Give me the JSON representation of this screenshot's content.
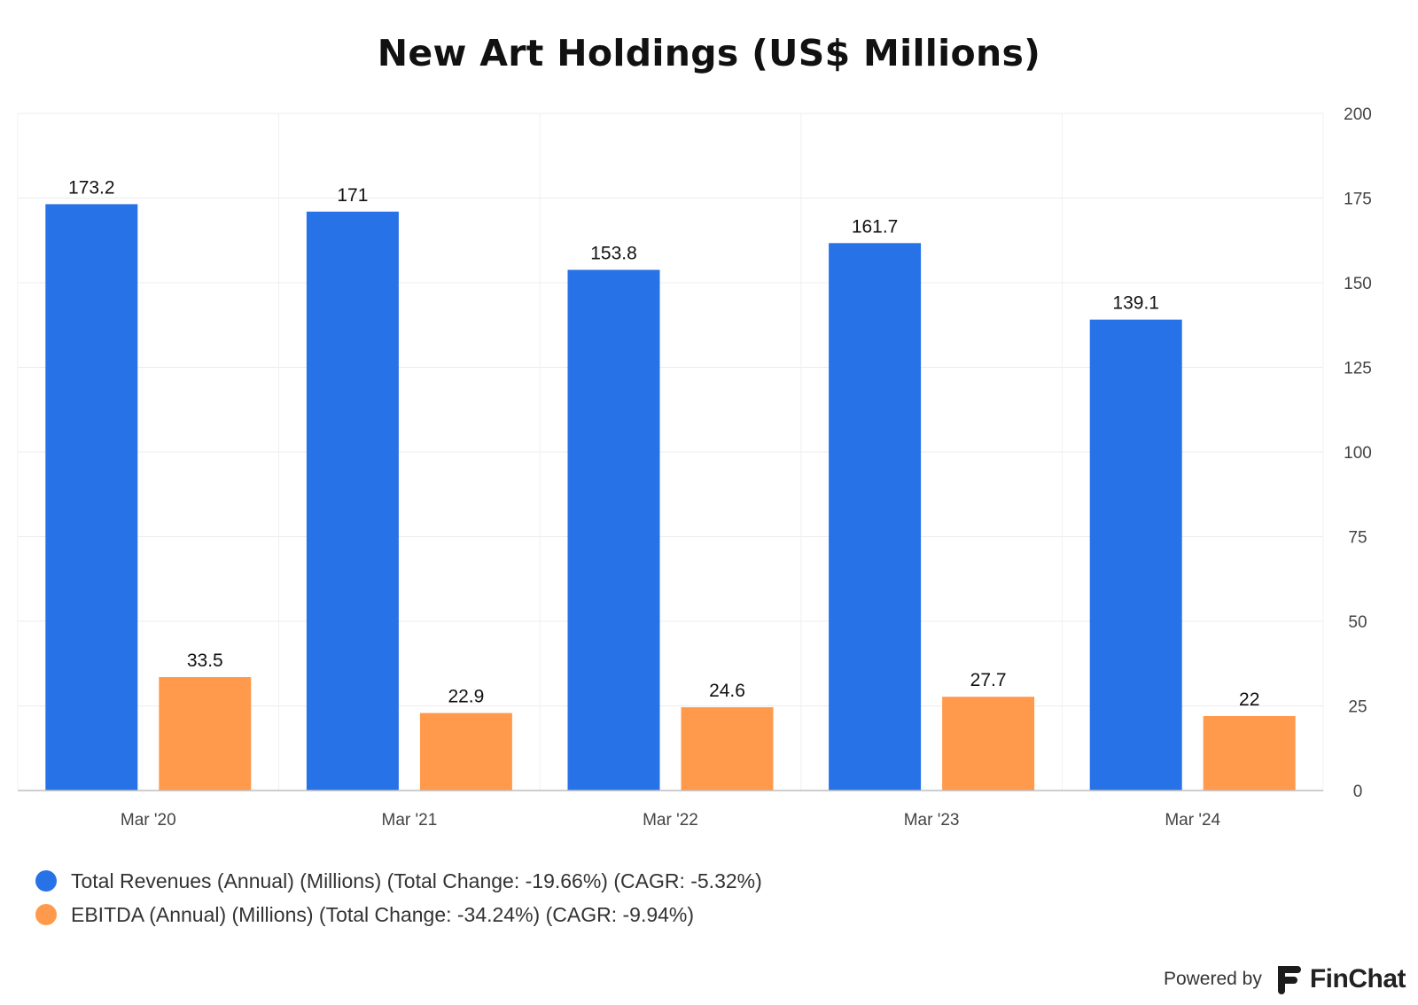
{
  "chart_data": {
    "type": "bar",
    "title": "New Art Holdings (US$ Millions)",
    "categories": [
      "Mar '20",
      "Mar '21",
      "Mar '22",
      "Mar '23",
      "Mar '24"
    ],
    "series": [
      {
        "name": "Total Revenues (Annual) (Millions) (Total Change: -19.66%) (CAGR: -5.32%)",
        "values": [
          173.2,
          171,
          153.8,
          161.7,
          139.1
        ],
        "labels": [
          "173.2",
          "171",
          "153.8",
          "161.7",
          "139.1"
        ],
        "color": "#2872e8"
      },
      {
        "name": "EBITDA (Annual) (Millions) (Total Change: -34.24%) (CAGR: -9.94%)",
        "values": [
          33.5,
          22.9,
          24.6,
          27.7,
          22
        ],
        "labels": [
          "33.5",
          "22.9",
          "24.6",
          "27.7",
          "22"
        ],
        "color": "#ff9a4d"
      }
    ],
    "ylim": [
      0,
      200
    ],
    "yticks": [
      "0",
      "25",
      "50",
      "75",
      "100",
      "125",
      "150",
      "175",
      "200"
    ],
    "y_axis_side": "right",
    "grid": true,
    "legend": "bottom-left"
  },
  "footer": {
    "powered_by": "Powered by",
    "brand": "FinChat"
  }
}
